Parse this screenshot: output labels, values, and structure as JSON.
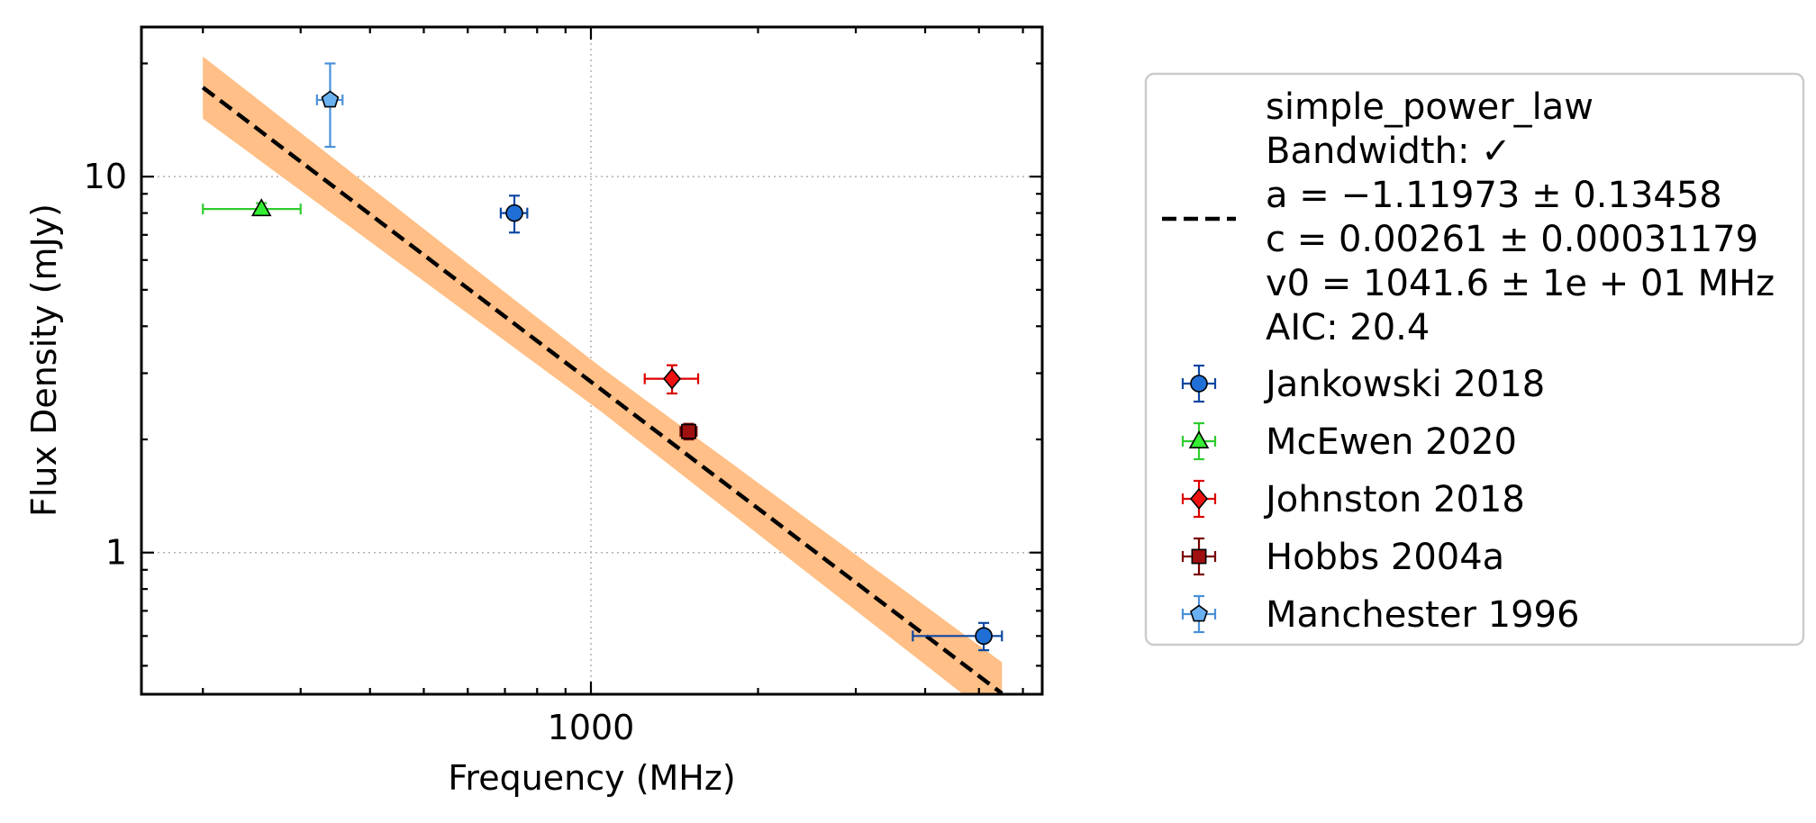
{
  "chart_data": {
    "type": "scatter",
    "title": "",
    "xlabel": "Frequency (MHz)",
    "ylabel": "Flux Density (mJy)",
    "xscale": "log",
    "yscale": "log",
    "xlim": [
      155,
      6500
    ],
    "ylim": [
      0.42,
      25
    ],
    "xticks": [
      {
        "value": 1000,
        "label": "1000"
      }
    ],
    "yticks": [
      {
        "value": 1,
        "label": "1"
      },
      {
        "value": 10,
        "label": "10"
      }
    ],
    "grid": true,
    "legend_position": "outside right",
    "fit": {
      "model": "simple_power_law",
      "lines": [
        "simple_power_law",
        "Bandwidth: ✓",
        "a = −1.11973 ± 0.13458",
        "c = 0.00261 ± 0.00031179",
        "v0 = 1041.6 ± 1e + 01 MHz",
        "AIC: 20.4"
      ],
      "a": -1.11973,
      "c": 0.00261,
      "v0": 1041.6,
      "x_range": [
        200,
        5500
      ],
      "line_color": "#000000",
      "band_color": "#ffbf86"
    },
    "series": [
      {
        "name": "Jankowski 2018",
        "marker": "circle",
        "color": "#1f6fd6",
        "edge": "#0d47a1",
        "points": [
          {
            "x": 728,
            "y": 8.0,
            "xerr": [
              40,
              40
            ],
            "yerr": [
              0.9,
              0.9
            ]
          },
          {
            "x": 5100,
            "y": 0.6,
            "xerr": [
              1300,
              400
            ],
            "yerr": [
              0.05,
              0.05
            ]
          }
        ]
      },
      {
        "name": "McEwen 2020",
        "marker": "triangle",
        "color": "#33ee33",
        "edge": "#2ecc2e",
        "points": [
          {
            "x": 255,
            "y": 8.2,
            "xerr": [
              55,
              45
            ],
            "yerr": [
              0.3,
              0.3
            ]
          }
        ]
      },
      {
        "name": "Johnston 2018",
        "marker": "diamond",
        "color": "#ee1111",
        "edge": "#dd0000",
        "points": [
          {
            "x": 1400,
            "y": 2.9,
            "xerr": [
              150,
              160
            ],
            "yerr": [
              0.25,
              0.25
            ]
          }
        ]
      },
      {
        "name": "Hobbs 2004a",
        "marker": "square",
        "color": "#a01010",
        "edge": "#7a0000",
        "points": [
          {
            "x": 1500,
            "y": 2.1,
            "xerr": [
              50,
              50
            ],
            "yerr": [
              0.1,
              0.1
            ]
          }
        ]
      },
      {
        "name": "Manchester 1996",
        "marker": "pentagon",
        "color": "#69b0f0",
        "edge": "#4a90d9",
        "points": [
          {
            "x": 339,
            "y": 16.0,
            "xerr": [
              18,
              18
            ],
            "yerr": [
              4,
              4
            ]
          }
        ]
      }
    ]
  }
}
